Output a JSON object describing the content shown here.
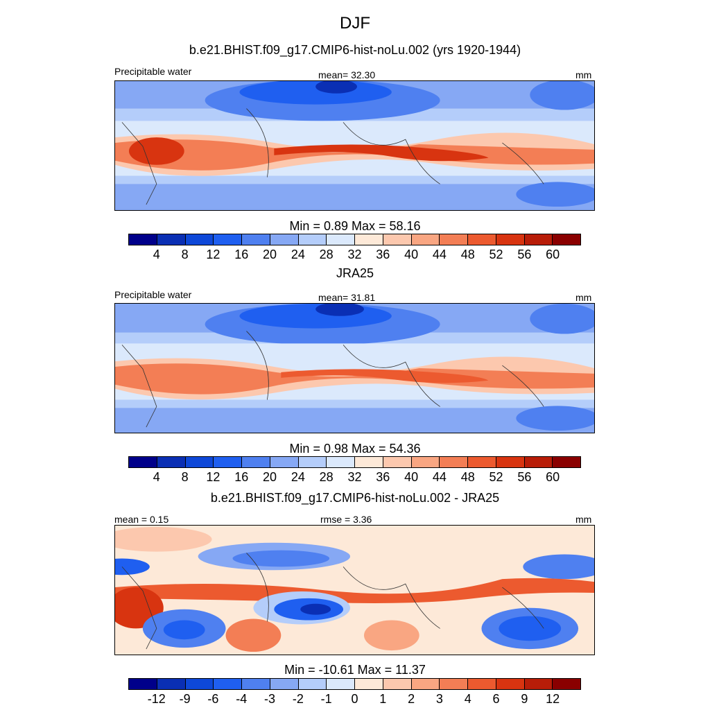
{
  "title": "DJF",
  "panels": [
    {
      "subtitle": "b.e21.BHIST.f09_g17.CMIP6-hist-noLu.002 (yrs 1920-1944)",
      "left_label": "Precipitable water",
      "center_label": "mean=  32.30",
      "right_label": "mm",
      "stats": "Min =   0.89 Max =  58.16"
    },
    {
      "subtitle": "JRA25",
      "left_label": "Precipitable water",
      "center_label": "mean=  31.81",
      "right_label": "mm",
      "stats": "Min =   0.98 Max =  54.36"
    },
    {
      "subtitle": "b.e21.BHIST.f09_g17.CMIP6-hist-noLu.002 - JRA25",
      "left_label": "mean =   0.15",
      "center_label": "rmse =   3.36",
      "right_label": "mm",
      "stats": "Min = -10.61 Max =  11.37"
    }
  ],
  "colorbar_colors": [
    "#00008a",
    "#0a2fb4",
    "#0e48d8",
    "#1f5ff0",
    "#4f80f0",
    "#86a8f4",
    "#b4cdfa",
    "#dbe9fc",
    "#fde9d8",
    "#fcc8ae",
    "#f9a682",
    "#f37e55",
    "#ec5a2f",
    "#d83410",
    "#b81d08",
    "#8a0000"
  ],
  "colorbar_ticks_pw": [
    "4",
    "8",
    "12",
    "16",
    "20",
    "24",
    "28",
    "32",
    "36",
    "40",
    "44",
    "48",
    "52",
    "56",
    "60"
  ],
  "colorbar_ticks_diff": [
    "-12",
    "-9",
    "-6",
    "-4",
    "-3",
    "-2",
    "-1",
    "0",
    "1",
    "2",
    "3",
    "4",
    "6",
    "9",
    "12"
  ]
}
